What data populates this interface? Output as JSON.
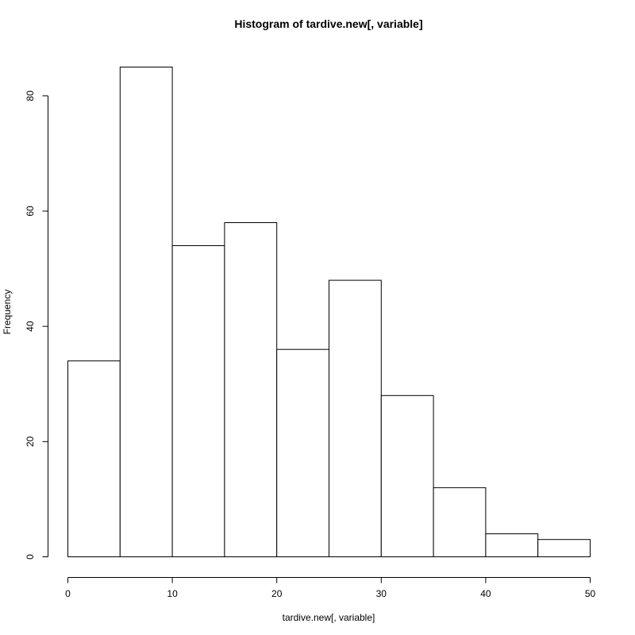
{
  "chart_data": {
    "type": "bar",
    "title": "Histogram of tardive.new[, variable]",
    "xlabel": "tardive.new[, variable]",
    "ylabel": "Frequency",
    "bins": [
      {
        "x0": 0,
        "x1": 5,
        "count": 34
      },
      {
        "x0": 5,
        "x1": 10,
        "count": 85
      },
      {
        "x0": 10,
        "x1": 15,
        "count": 54
      },
      {
        "x0": 15,
        "x1": 20,
        "count": 58
      },
      {
        "x0": 20,
        "x1": 25,
        "count": 36
      },
      {
        "x0": 25,
        "x1": 30,
        "count": 48
      },
      {
        "x0": 30,
        "x1": 35,
        "count": 28
      },
      {
        "x0": 35,
        "x1": 40,
        "count": 12
      },
      {
        "x0": 40,
        "x1": 45,
        "count": 4
      },
      {
        "x0": 45,
        "x1": 50,
        "count": 3
      }
    ],
    "xticks": [
      0,
      10,
      20,
      30,
      40,
      50
    ],
    "yticks": [
      0,
      20,
      40,
      60,
      80
    ],
    "xlim": [
      0,
      50
    ],
    "ylim": [
      0,
      85
    ],
    "grid": false,
    "legend": "none"
  }
}
